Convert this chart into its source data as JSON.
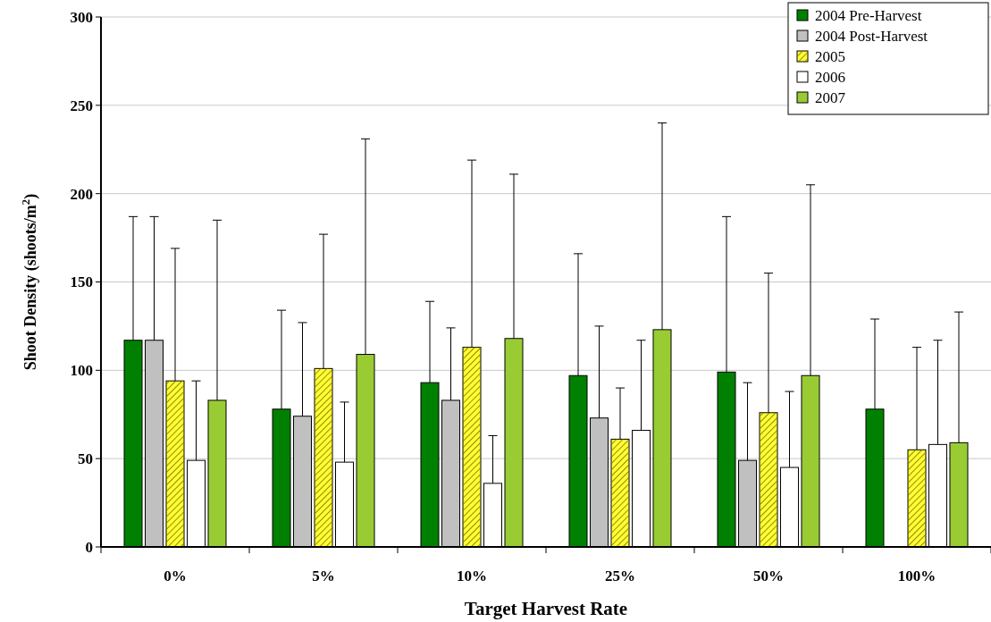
{
  "chart_data": {
    "type": "bar",
    "xlabel": "Target Harvest Rate",
    "ylabel": "Shoot Density (shoots/m$^{2}$)",
    "categories": [
      "0%",
      "5%",
      "10%",
      "25%",
      "50%",
      "100%"
    ],
    "series": [
      {
        "name": "2004 Pre-Harvest",
        "color": "#008000",
        "values": [
          117,
          78,
          93,
          97,
          99,
          78
        ],
        "errors": [
          [
            117,
            187
          ],
          [
            78,
            134
          ],
          [
            93,
            139
          ],
          [
            97,
            166
          ],
          [
            99,
            187
          ],
          [
            78,
            129
          ]
        ]
      },
      {
        "name": "2004 Post-Harvest",
        "color": "#c0c0c0",
        "values": [
          117,
          74,
          83,
          73,
          49,
          null
        ],
        "errors": [
          [
            117,
            187
          ],
          [
            74,
            127
          ],
          [
            83,
            124
          ],
          [
            73,
            125
          ],
          [
            49,
            93
          ],
          null
        ]
      },
      {
        "name": "2005",
        "color": "#ffff33",
        "values": [
          94,
          101,
          113,
          61,
          76,
          55
        ],
        "errors": [
          [
            94,
            169
          ],
          [
            101,
            177
          ],
          [
            113,
            219
          ],
          [
            61,
            90
          ],
          [
            76,
            155
          ],
          [
            55,
            113
          ]
        ]
      },
      {
        "name": "2006",
        "color": "#ffffff",
        "values": [
          49,
          48,
          36,
          66,
          45,
          58
        ],
        "errors": [
          [
            49,
            94
          ],
          [
            48,
            82
          ],
          [
            36,
            63
          ],
          [
            66,
            117
          ],
          [
            45,
            88
          ],
          [
            58,
            117
          ]
        ]
      },
      {
        "name": "2007",
        "color": "#99cc33",
        "values": [
          83,
          109,
          118,
          123,
          97,
          59
        ],
        "errors": [
          [
            83,
            185
          ],
          [
            109,
            231
          ],
          [
            118,
            211
          ],
          [
            123,
            240
          ],
          [
            97,
            205
          ],
          [
            59,
            133
          ]
        ]
      }
    ],
    "ylim": [
      0,
      300
    ],
    "yticks": [
      0,
      50,
      100,
      150,
      200,
      250,
      300
    ],
    "grid": "y",
    "legend": "top right"
  }
}
